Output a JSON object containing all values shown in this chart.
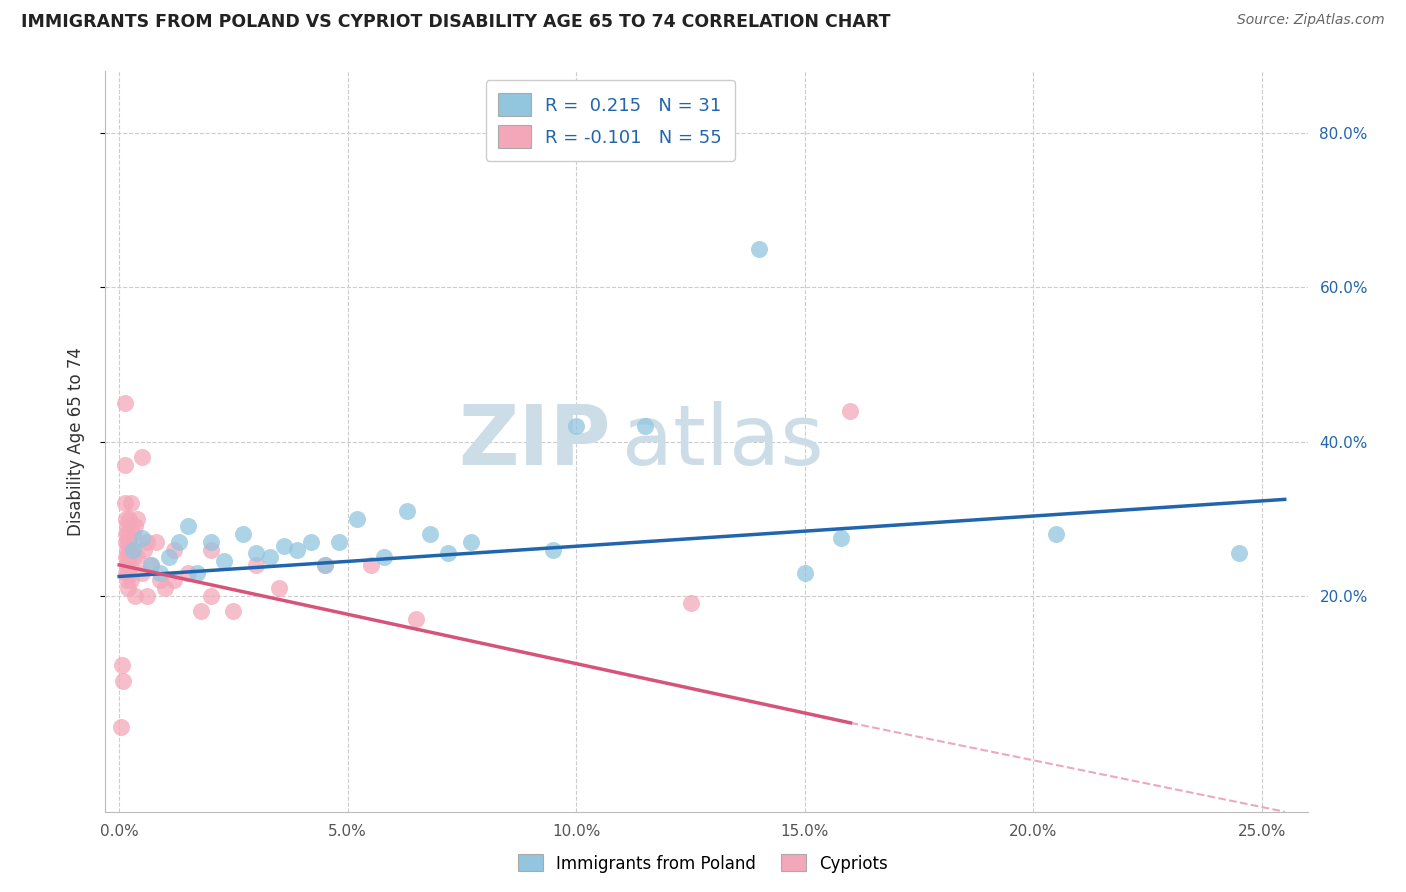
{
  "title": "IMMIGRANTS FROM POLAND VS CYPRIOT DISABILITY AGE 65 TO 74 CORRELATION CHART",
  "source": "Source: ZipAtlas.com",
  "ylabel": "Disability Age 65 to 74",
  "x_tick_labels": [
    "0.0%",
    "5.0%",
    "10.0%",
    "15.0%",
    "20.0%",
    "25.0%"
  ],
  "x_tick_vals": [
    0.0,
    5.0,
    10.0,
    15.0,
    20.0,
    25.0
  ],
  "y_tick_labels": [
    "20.0%",
    "40.0%",
    "60.0%",
    "80.0%"
  ],
  "y_tick_vals": [
    20.0,
    40.0,
    60.0,
    80.0
  ],
  "xlim": [
    -0.3,
    26.0
  ],
  "ylim": [
    -8,
    88.0
  ],
  "legend_label1": "Immigrants from Poland",
  "legend_label2": "Cypriots",
  "R1": "0.215",
  "N1": "31",
  "R2": "-0.101",
  "N2": "55",
  "blue_color": "#92c5de",
  "pink_color": "#f4a7b9",
  "blue_line_color": "#2166ac",
  "pink_line_color": "#d6547a",
  "title_color": "#222222",
  "source_color": "#666666",
  "watermark_color": "#ccdde8",
  "grid_color": "#cccccc",
  "bg_color": "#ffffff",
  "blue_points": [
    [
      0.3,
      26.0
    ],
    [
      0.5,
      27.5
    ],
    [
      0.7,
      24.0
    ],
    [
      0.9,
      23.0
    ],
    [
      1.1,
      25.0
    ],
    [
      1.3,
      27.0
    ],
    [
      1.5,
      29.0
    ],
    [
      1.7,
      23.0
    ],
    [
      2.0,
      27.0
    ],
    [
      2.3,
      24.5
    ],
    [
      2.7,
      28.0
    ],
    [
      3.0,
      25.5
    ],
    [
      3.3,
      25.0
    ],
    [
      3.6,
      26.5
    ],
    [
      3.9,
      26.0
    ],
    [
      4.2,
      27.0
    ],
    [
      4.5,
      24.0
    ],
    [
      4.8,
      27.0
    ],
    [
      5.2,
      30.0
    ],
    [
      5.8,
      25.0
    ],
    [
      6.3,
      31.0
    ],
    [
      6.8,
      28.0
    ],
    [
      7.2,
      25.5
    ],
    [
      7.7,
      27.0
    ],
    [
      9.5,
      26.0
    ],
    [
      10.0,
      42.0
    ],
    [
      11.5,
      42.0
    ],
    [
      15.0,
      23.0
    ],
    [
      15.8,
      27.5
    ],
    [
      20.5,
      28.0
    ],
    [
      24.5,
      25.5
    ]
  ],
  "blue_outlier": [
    14.0,
    65.0
  ],
  "pink_points": [
    [
      0.05,
      3.0
    ],
    [
      0.07,
      11.0
    ],
    [
      0.09,
      9.0
    ],
    [
      0.12,
      45.0
    ],
    [
      0.13,
      32.0
    ],
    [
      0.13,
      37.0
    ],
    [
      0.15,
      27.0
    ],
    [
      0.15,
      30.0
    ],
    [
      0.15,
      25.0
    ],
    [
      0.16,
      28.0
    ],
    [
      0.16,
      23.0
    ],
    [
      0.17,
      26.0
    ],
    [
      0.18,
      29.0
    ],
    [
      0.18,
      24.0
    ],
    [
      0.18,
      22.0
    ],
    [
      0.19,
      27.0
    ],
    [
      0.19,
      21.0
    ],
    [
      0.2,
      28.0
    ],
    [
      0.2,
      25.0
    ],
    [
      0.2,
      23.0
    ],
    [
      0.21,
      26.0
    ],
    [
      0.22,
      30.0
    ],
    [
      0.22,
      27.0
    ],
    [
      0.23,
      24.0
    ],
    [
      0.25,
      32.0
    ],
    [
      0.25,
      22.0
    ],
    [
      0.3,
      28.0
    ],
    [
      0.3,
      25.0
    ],
    [
      0.35,
      29.0
    ],
    [
      0.35,
      20.0
    ],
    [
      0.4,
      30.0
    ],
    [
      0.4,
      25.0
    ],
    [
      0.5,
      38.0
    ],
    [
      0.5,
      23.0
    ],
    [
      0.55,
      26.0
    ],
    [
      0.6,
      27.0
    ],
    [
      0.6,
      20.0
    ],
    [
      0.7,
      24.0
    ],
    [
      0.8,
      27.0
    ],
    [
      0.9,
      22.0
    ],
    [
      1.0,
      21.0
    ],
    [
      1.2,
      26.0
    ],
    [
      1.2,
      22.0
    ],
    [
      1.5,
      23.0
    ],
    [
      1.8,
      18.0
    ],
    [
      2.0,
      20.0
    ],
    [
      2.0,
      26.0
    ],
    [
      2.5,
      18.0
    ],
    [
      3.0,
      24.0
    ],
    [
      3.5,
      21.0
    ],
    [
      4.5,
      24.0
    ],
    [
      5.5,
      24.0
    ],
    [
      6.5,
      17.0
    ],
    [
      12.5,
      19.0
    ],
    [
      16.0,
      44.0
    ]
  ],
  "blue_line_start_x": 0.0,
  "blue_line_end_x": 25.5,
  "blue_line_y_at_0": 22.5,
  "blue_line_y_at_25": 32.5,
  "pink_line_y_at_0": 24.0,
  "pink_line_y_at_25": -8.0,
  "pink_solid_end_x": 16.0
}
